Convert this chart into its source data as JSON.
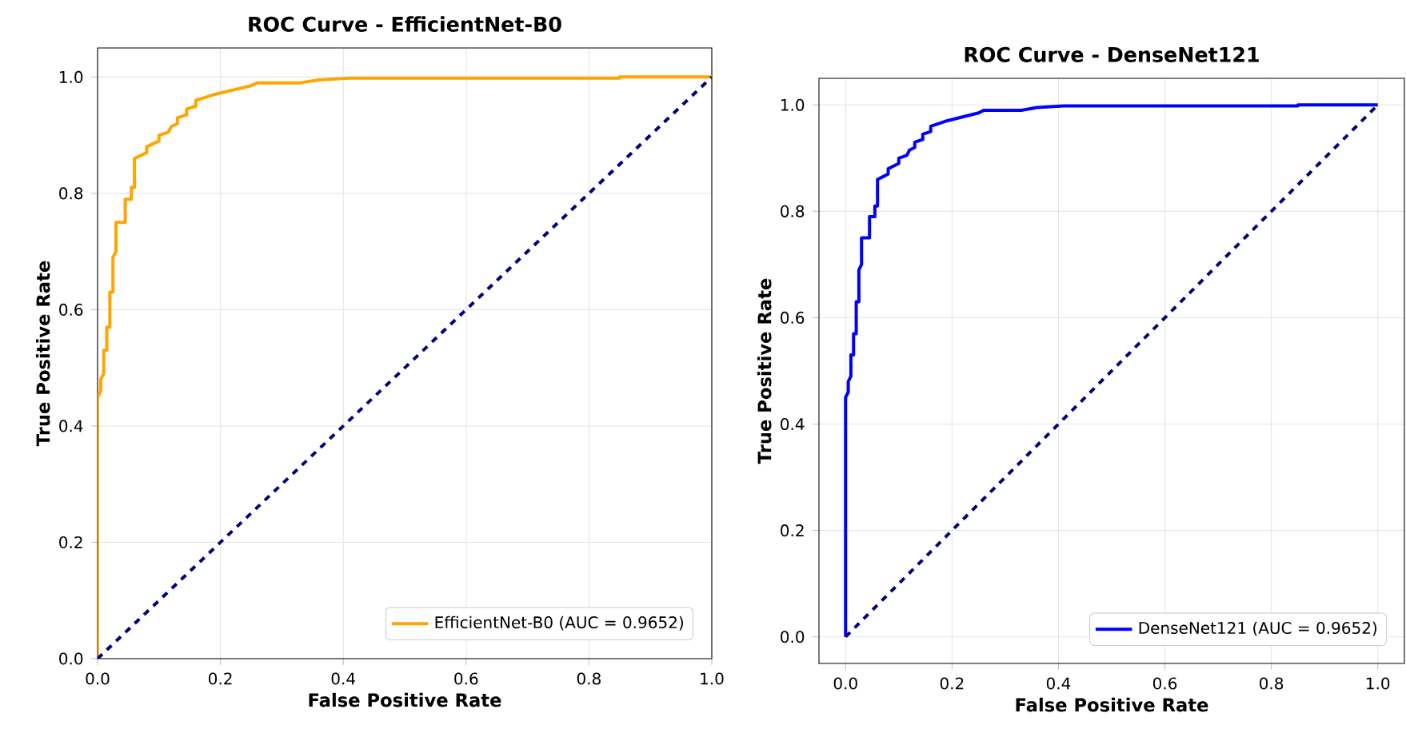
{
  "chart_data": [
    {
      "type": "line",
      "title": "ROC Curve - EfficientNet-B0",
      "xlabel": "False Positive Rate",
      "ylabel": "True Positive Rate",
      "series": [
        {
          "name": "EfficientNet-B0 (AUC = 0.9652)",
          "color": "#ffa500",
          "line_style": "solid",
          "x": [
            0,
            0,
            0.005,
            0.005,
            0.01,
            0.01,
            0.015,
            0.015,
            0.02,
            0.02,
            0.025,
            0.025,
            0.03,
            0.03,
            0.045,
            0.045,
            0.055,
            0.055,
            0.06,
            0.06,
            0.07,
            0.08,
            0.08,
            0.09,
            0.1,
            0.1,
            0.115,
            0.12,
            0.13,
            0.13,
            0.145,
            0.145,
            0.16,
            0.16,
            0.175,
            0.19,
            0.21,
            0.23,
            0.25,
            0.26,
            0.33,
            0.36,
            0.41,
            0.85,
            0.85,
            1
          ],
          "values": [
            0,
            0.45,
            0.46,
            0.48,
            0.49,
            0.53,
            0.53,
            0.57,
            0.57,
            0.63,
            0.63,
            0.69,
            0.7,
            0.75,
            0.75,
            0.79,
            0.79,
            0.81,
            0.81,
            0.86,
            0.865,
            0.87,
            0.88,
            0.885,
            0.89,
            0.9,
            0.905,
            0.915,
            0.92,
            0.93,
            0.935,
            0.945,
            0.95,
            0.96,
            0.965,
            0.97,
            0.975,
            0.98,
            0.985,
            0.99,
            0.99,
            0.995,
            0.998,
            0.998,
            1,
            1
          ]
        },
        {
          "color": "#000080",
          "line_style": "dashed",
          "x": [
            0,
            1
          ],
          "values": [
            0,
            1
          ]
        }
      ],
      "xlim": [
        0,
        1
      ],
      "ylim": [
        0,
        1.05
      ],
      "xticks": [
        {
          "value": 0,
          "label": "0.0"
        },
        {
          "value": 0.2,
          "label": "0.2"
        },
        {
          "value": 0.4,
          "label": "0.4"
        },
        {
          "value": 0.6,
          "label": "0.6"
        },
        {
          "value": 0.8,
          "label": "0.8"
        },
        {
          "value": 1,
          "label": "1.0"
        }
      ],
      "yticks": [
        {
          "value": 0,
          "label": "0.0"
        },
        {
          "value": 0.2,
          "label": "0.2"
        },
        {
          "value": 0.4,
          "label": "0.4"
        },
        {
          "value": 0.6,
          "label": "0.6"
        },
        {
          "value": 0.8,
          "label": "0.8"
        },
        {
          "value": 1,
          "label": "1.0"
        }
      ],
      "grid": true,
      "legend": "bottom right"
    },
    {
      "type": "line",
      "title": "ROC Curve - DenseNet121",
      "xlabel": "False Positive Rate",
      "ylabel": "True Positive Rate",
      "series": [
        {
          "name": "DenseNet121 (AUC = 0.9652)",
          "color": "#0000ff",
          "line_style": "solid",
          "x": [
            0,
            0,
            0.005,
            0.005,
            0.01,
            0.01,
            0.015,
            0.015,
            0.02,
            0.02,
            0.025,
            0.025,
            0.03,
            0.03,
            0.045,
            0.045,
            0.055,
            0.055,
            0.06,
            0.06,
            0.07,
            0.08,
            0.08,
            0.09,
            0.1,
            0.1,
            0.115,
            0.12,
            0.13,
            0.13,
            0.145,
            0.145,
            0.16,
            0.16,
            0.175,
            0.19,
            0.21,
            0.23,
            0.25,
            0.26,
            0.33,
            0.36,
            0.41,
            0.85,
            0.85,
            1
          ],
          "values": [
            0,
            0.45,
            0.46,
            0.48,
            0.49,
            0.53,
            0.53,
            0.57,
            0.57,
            0.63,
            0.63,
            0.69,
            0.7,
            0.75,
            0.75,
            0.79,
            0.79,
            0.81,
            0.81,
            0.86,
            0.865,
            0.87,
            0.88,
            0.885,
            0.89,
            0.9,
            0.905,
            0.915,
            0.92,
            0.93,
            0.935,
            0.945,
            0.95,
            0.96,
            0.965,
            0.97,
            0.975,
            0.98,
            0.985,
            0.99,
            0.99,
            0.995,
            0.998,
            0.998,
            1,
            1
          ]
        },
        {
          "color": "#000080",
          "line_style": "dashed",
          "x": [
            0,
            1
          ],
          "values": [
            0,
            1
          ]
        }
      ],
      "xlim": [
        -0.05,
        1.05
      ],
      "ylim": [
        -0.05,
        1.05
      ],
      "xticks": [
        {
          "value": 0,
          "label": "0.0"
        },
        {
          "value": 0.2,
          "label": "0.2"
        },
        {
          "value": 0.4,
          "label": "0.4"
        },
        {
          "value": 0.6,
          "label": "0.6"
        },
        {
          "value": 0.8,
          "label": "0.8"
        },
        {
          "value": 1,
          "label": "1.0"
        }
      ],
      "yticks": [
        {
          "value": 0,
          "label": "0.0"
        },
        {
          "value": 0.2,
          "label": "0.2"
        },
        {
          "value": 0.4,
          "label": "0.4"
        },
        {
          "value": 0.6,
          "label": "0.6"
        },
        {
          "value": 0.8,
          "label": "0.8"
        },
        {
          "value": 1,
          "label": "1.0"
        }
      ],
      "grid": true,
      "legend": "bottom right"
    }
  ]
}
